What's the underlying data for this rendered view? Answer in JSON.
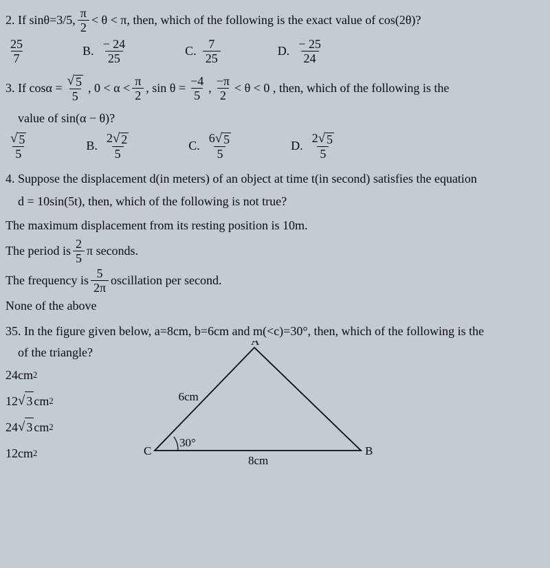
{
  "colors": {
    "text": "#0a0a14",
    "background": "#c4ccd3",
    "line": "#0a0a14"
  },
  "typography": {
    "family": "Times New Roman",
    "body_size_pt": 14
  },
  "q2": {
    "prompt_lead": "2. If sinθ=3/5, ",
    "cond_num": "π",
    "cond_den": "2",
    "prompt_mid": " < θ < π, then, which of the following is the exact value of cos(2θ)?",
    "A_num": "25",
    "A_den": "7",
    "B_label": "B.",
    "B_num": "− 24",
    "B_den": "25",
    "C_label": "C.",
    "C_num": "7",
    "C_den": "25",
    "D_label": "D.",
    "D_num": "− 25",
    "D_den": "24"
  },
  "q3": {
    "lead": "3. If cosα = ",
    "cos_num_radicand": "5",
    "cos_den": "5",
    "seg1": ", 0 < α < ",
    "half_num": "π",
    "half_den": "2",
    "seg2": ", sin θ = ",
    "sin_num": "−4",
    "sin_den": "5",
    "seg3": ", ",
    "neg_half_num": "−π",
    "neg_half_den": "2",
    "seg4": " < θ < 0 , then, which of the following is the",
    "line2": "value of sin(α − θ)?",
    "A_num_radicand": "5",
    "A_den": "5",
    "B_label": "B.",
    "B_coef": "2",
    "B_radicand": "2",
    "B_den": "5",
    "C_label": "C.",
    "C_coef": "6",
    "C_radicand": "5",
    "C_den": "5",
    "D_label": "D.",
    "D_coef": "2",
    "D_radicand": "5",
    "D_den": "5"
  },
  "q4": {
    "prompt1": "4. Suppose the displacement d(in meters) of an object at time t(in second) satisfies the equation",
    "prompt2": "d = 10sin(5t), then, which of the following is not true?",
    "optA": "The maximum displacement from its resting position is 10m.",
    "optB_lead": "The period is ",
    "optB_num": "2",
    "optB_den": "5",
    "optB_tail": "π seconds.",
    "optC_lead": "The frequency is ",
    "optC_num": "5",
    "optC_den": "2π",
    "optC_tail": " oscillation per second.",
    "optD": "None of the above"
  },
  "q35": {
    "prompt": "35. In the figure given below, a=8cm, b=6cm and m(<c)=30°, then, which of the following is the",
    "prompt2": "of the triangle?",
    "A": "24cm",
    "B_coef": "12 ",
    "B_radicand": "3",
    "B_tail": " cm",
    "C_coef": "24 ",
    "C_radicand": "3",
    "C_tail": " cm",
    "D": "12cm",
    "triangle": {
      "A_label": "A",
      "B_label": "B",
      "C_label": "C",
      "side_b": "6cm",
      "side_a": "8cm",
      "angle_c": "30°",
      "stroke": "#0a0a14",
      "stroke_width": 1.8,
      "points": {
        "A": [
          175,
          10
        ],
        "C": [
          30,
          160
        ],
        "B": [
          330,
          160
        ]
      }
    }
  }
}
